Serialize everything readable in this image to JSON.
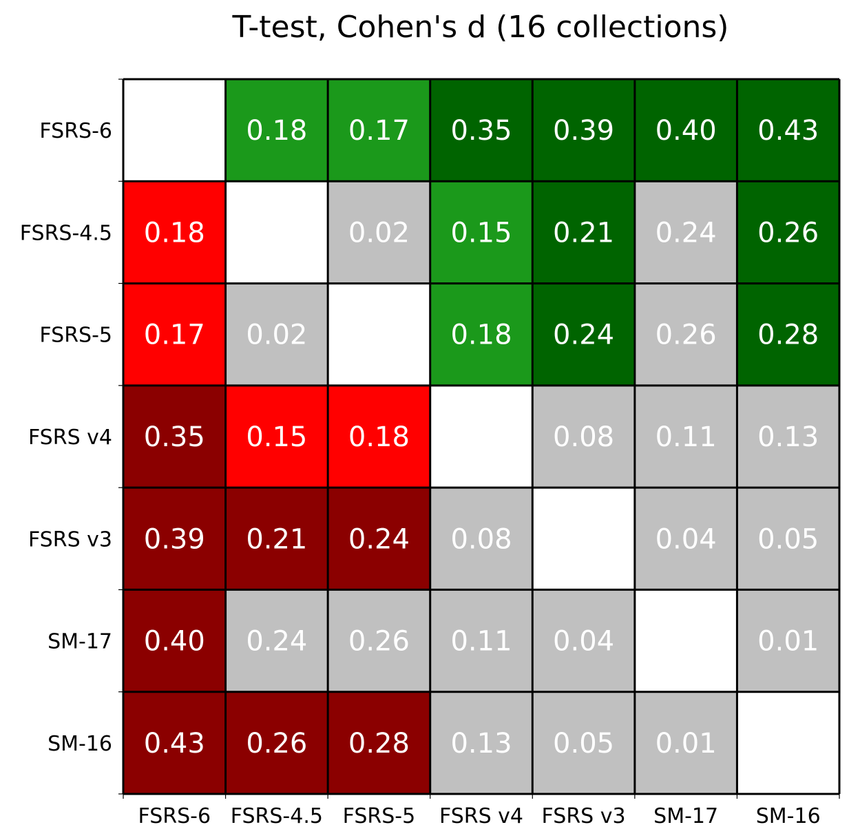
{
  "chart_data": {
    "type": "heatmap",
    "title": "T-test, Cohen's d (16 collections)",
    "xlabel": "",
    "ylabel": "",
    "categories": [
      "FSRS-6",
      "FSRS-4.5",
      "FSRS-5",
      "FSRS v4",
      "FSRS v3",
      "SM-17",
      "SM-16"
    ],
    "rows": [
      "FSRS-6",
      "FSRS-4.5",
      "FSRS-5",
      "FSRS v4",
      "FSRS v3",
      "SM-17",
      "SM-16"
    ],
    "values": [
      [
        null,
        "0.18",
        "0.17",
        "0.35",
        "0.39",
        "0.40",
        "0.43"
      ],
      [
        "0.18",
        null,
        "0.02",
        "0.15",
        "0.21",
        "0.24",
        "0.26"
      ],
      [
        "0.17",
        "0.02",
        null,
        "0.18",
        "0.24",
        "0.26",
        "0.28"
      ],
      [
        "0.35",
        "0.15",
        "0.18",
        null,
        "0.08",
        "0.11",
        "0.13"
      ],
      [
        "0.39",
        "0.21",
        "0.24",
        "0.08",
        null,
        "0.04",
        "0.05"
      ],
      [
        "0.40",
        "0.24",
        "0.26",
        "0.11",
        "0.04",
        null,
        "0.01"
      ],
      [
        "0.43",
        "0.26",
        "0.28",
        "0.13",
        "0.05",
        "0.01",
        null
      ]
    ],
    "cell_colors": [
      [
        "#ffffff",
        "#1b991b",
        "#1b991b",
        "#006400",
        "#006400",
        "#006400",
        "#006400"
      ],
      [
        "#ff0000",
        "#ffffff",
        "#c0c0c0",
        "#1b991b",
        "#006400",
        "#c0c0c0",
        "#006400"
      ],
      [
        "#ff0000",
        "#c0c0c0",
        "#ffffff",
        "#1b991b",
        "#006400",
        "#c0c0c0",
        "#006400"
      ],
      [
        "#8b0000",
        "#ff0000",
        "#ff0000",
        "#ffffff",
        "#c0c0c0",
        "#c0c0c0",
        "#c0c0c0"
      ],
      [
        "#8b0000",
        "#8b0000",
        "#8b0000",
        "#c0c0c0",
        "#ffffff",
        "#c0c0c0",
        "#c0c0c0"
      ],
      [
        "#8b0000",
        "#c0c0c0",
        "#c0c0c0",
        "#c0c0c0",
        "#c0c0c0",
        "#ffffff",
        "#c0c0c0"
      ],
      [
        "#8b0000",
        "#8b0000",
        "#8b0000",
        "#c0c0c0",
        "#c0c0c0",
        "#c0c0c0",
        "#ffffff"
      ]
    ],
    "colors": {
      "dark_green": "#006400",
      "green": "#1b991b",
      "red": "#ff0000",
      "dark_red": "#8b0000",
      "gray": "#c0c0c0",
      "diagonal": "#ffffff"
    },
    "grid": true,
    "legend": "none"
  }
}
